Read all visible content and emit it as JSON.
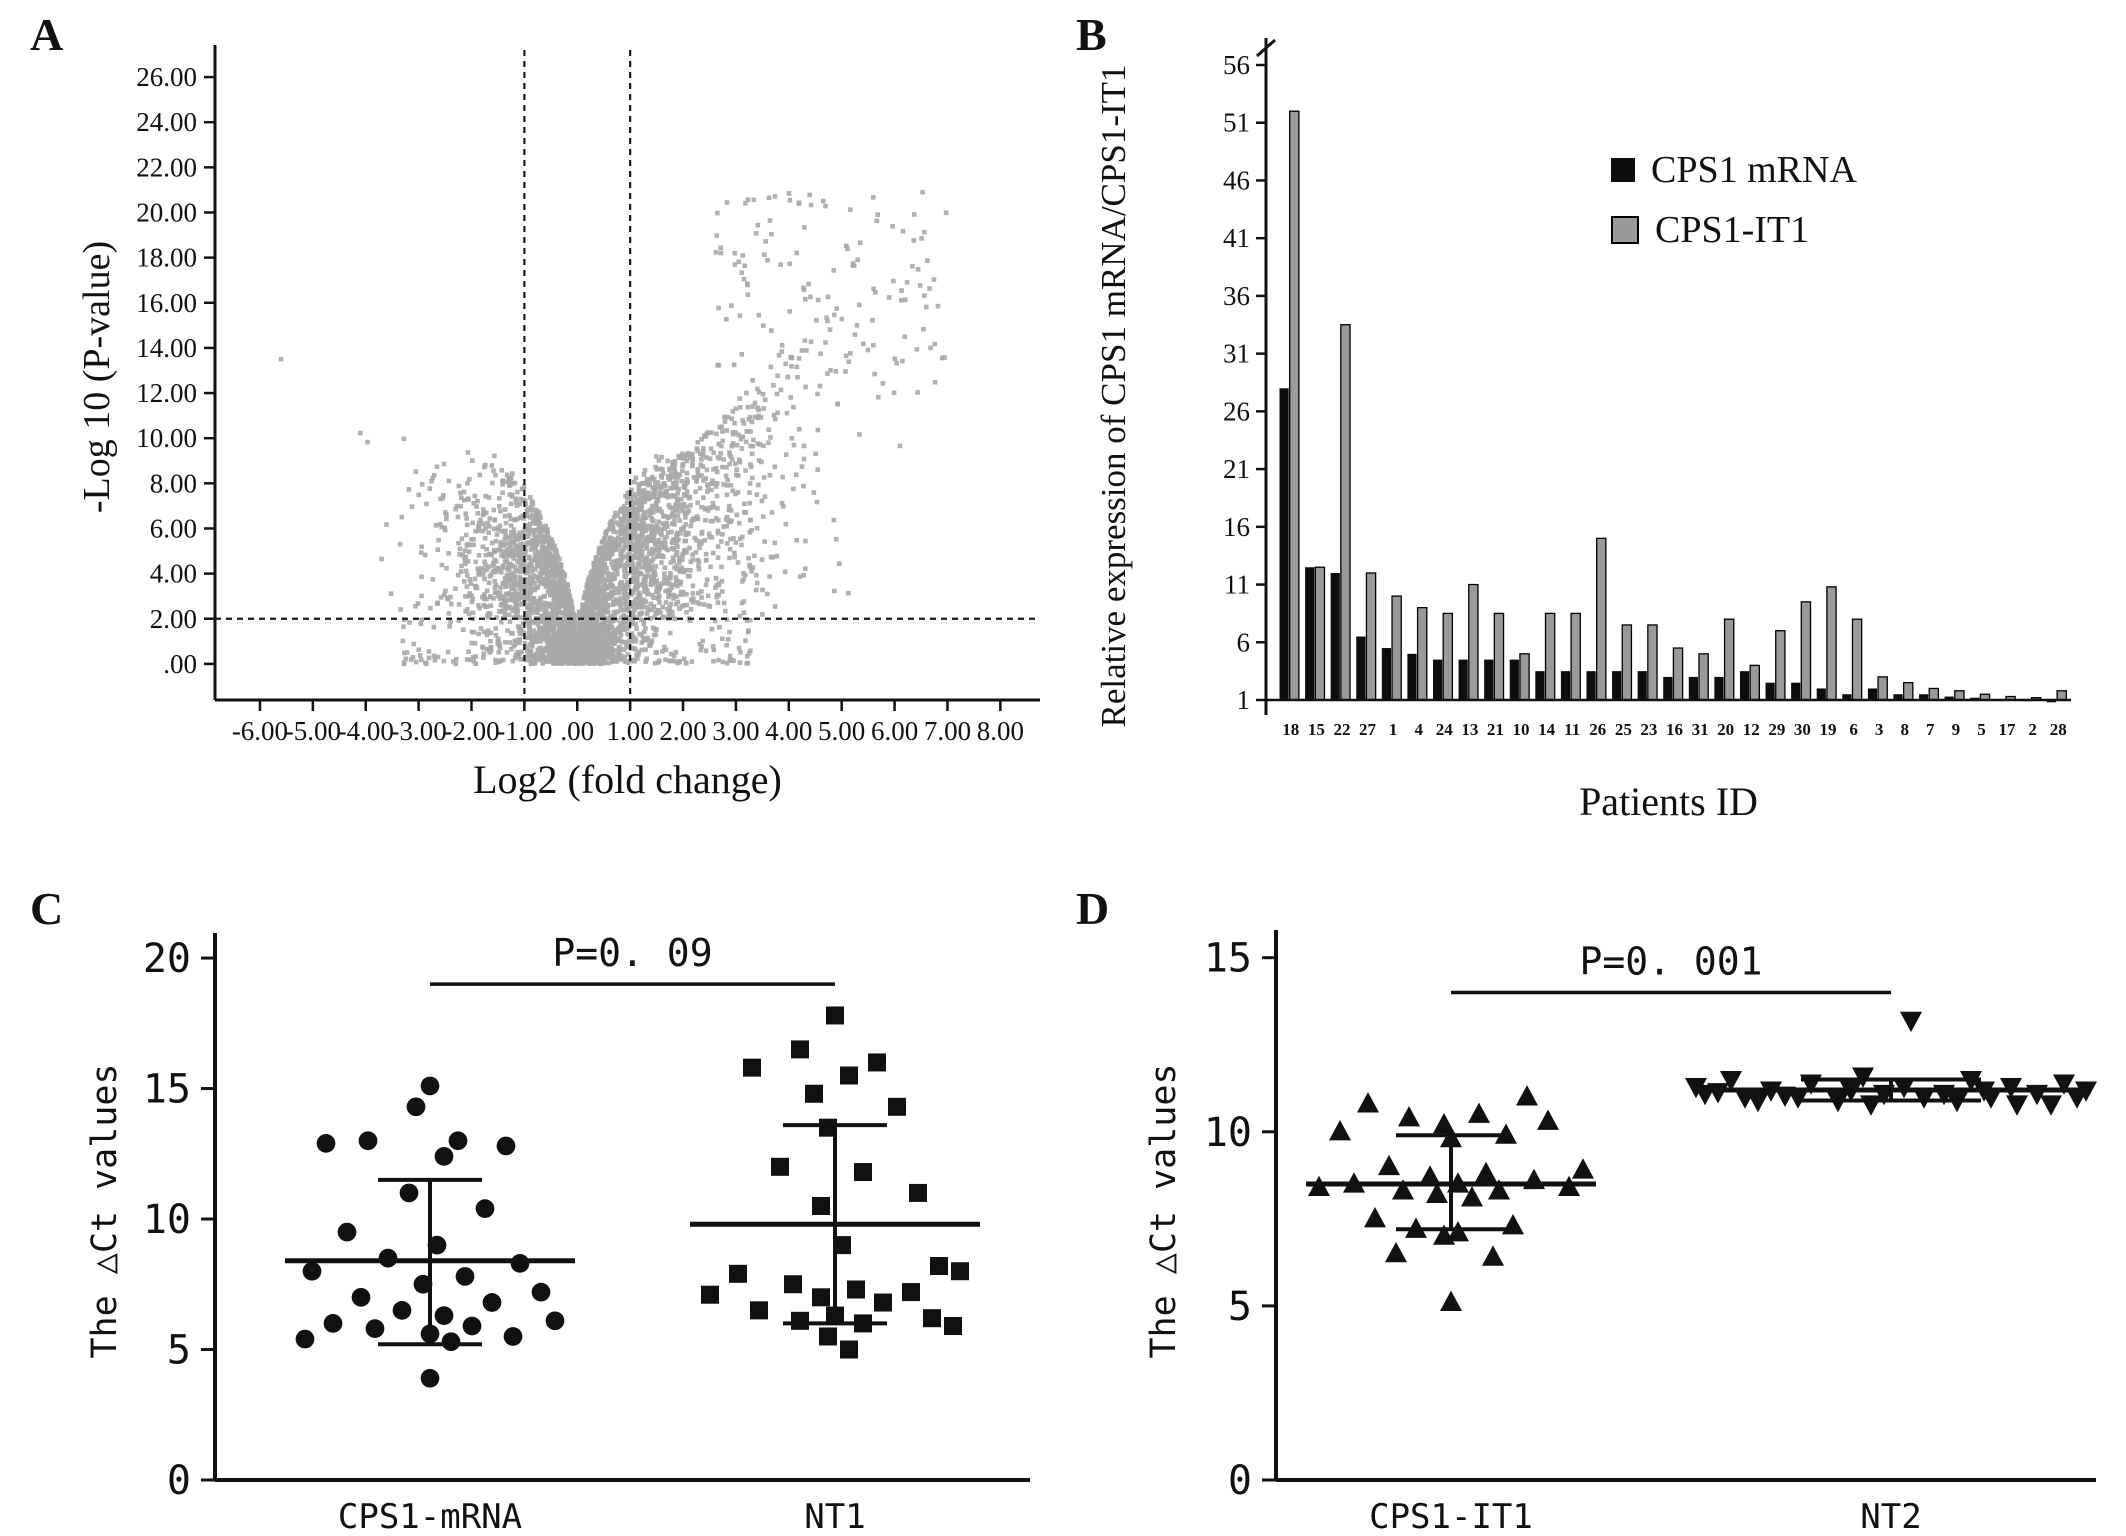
{
  "panels": {
    "a": {
      "letter": "A"
    },
    "b": {
      "letter": "B"
    },
    "c": {
      "letter": "C"
    },
    "d": {
      "letter": "D"
    }
  },
  "chart_data": [
    {
      "id": "volcano",
      "type": "scatter",
      "xlabel": "Log2 (fold change)",
      "ylabel": "-Log 10 (P-value)",
      "xlim": [
        -6.85,
        8.75
      ],
      "ylim": [
        -1.6,
        27.2
      ],
      "xticks": [
        -6,
        -5,
        -4,
        -3,
        -2,
        -1,
        0,
        1,
        2,
        3,
        4,
        5,
        6,
        7,
        8
      ],
      "xtick_labels": [
        "-6.00",
        "-5.00",
        "-4.00",
        "-3.00",
        "-2.00",
        "-1.00",
        ".00",
        "1.00",
        "2.00",
        "3.00",
        "4.00",
        "5.00",
        "6.00",
        "7.00",
        "8.00"
      ],
      "yticks": [
        0,
        2,
        4,
        6,
        8,
        10,
        12,
        14,
        16,
        18,
        20,
        22,
        24,
        26
      ],
      "ytick_labels": [
        ".00",
        "2.00",
        "4.00",
        "6.00",
        "8.00",
        "10.00",
        "12.00",
        "14.00",
        "16.00",
        "18.00",
        "20.00",
        "22.00",
        "24.00",
        "26.00"
      ],
      "threshold_lines": {
        "vertical_x": [
          -1,
          1
        ],
        "horizontal_y": 2
      },
      "marker": {
        "shape": "square",
        "color": "#a8a8a8",
        "size": 4.6
      },
      "point_cloud": {
        "seed": 20240615,
        "clusters": [
          {
            "kind": "core",
            "count": 2500,
            "x_sigma": 0.8,
            "x_clip": [
              -2.9,
              2.9
            ],
            "env_a": 0.2,
            "env_b": 7.6,
            "env_pow": 0.5,
            "y_max": 9.4
          },
          {
            "kind": "stem",
            "count": 650,
            "x_sigma": 0.25,
            "x_span": 0.9,
            "y_sigma": 0.8,
            "y_max": 2.3
          },
          {
            "kind": "wing",
            "count": 850,
            "side": 1,
            "x0": 0.95,
            "x_sigma": 1.55,
            "x_min": 0.95,
            "x_max": 7.6,
            "y_base": 2.0,
            "u_pow": 0.8,
            "c0": 3.0,
            "c1": 2.2,
            "y_max": 21.2
          },
          {
            "kind": "box",
            "count": 140,
            "x_range": [
              2.6,
              7.0
            ],
            "y_range": [
              12,
              21
            ]
          },
          {
            "kind": "wing",
            "count": 310,
            "side": -1,
            "x0": 0.95,
            "x_sigma": 1.05,
            "x_min": 0.95,
            "x_max": 5.1,
            "y_base": 2.0,
            "u_pow": 0.9,
            "c0": 1.2,
            "c1": 2.1,
            "y_max": 13.0
          },
          {
            "kind": "lowband",
            "count": 170,
            "x_range": [
              -3.3,
              3.3
            ],
            "y_max": 2.0
          },
          {
            "kind": "fixed",
            "x": -5.6,
            "y": 13.5
          }
        ]
      }
    },
    {
      "id": "expression-bars",
      "type": "bar",
      "xlabel": "Patients ID",
      "ylabel": "Relative expression of CPS1 mRNA/CPS1-IT1",
      "baseline": 1,
      "yticks": [
        1,
        6,
        11,
        16,
        21,
        26,
        31,
        36,
        41,
        46,
        51,
        56
      ],
      "categories": [
        "18",
        "15",
        "22",
        "27",
        "1",
        "4",
        "24",
        "13",
        "21",
        "10",
        "14",
        "11",
        "26",
        "25",
        "23",
        "16",
        "31",
        "20",
        "12",
        "29",
        "30",
        "19",
        "6",
        "3",
        "8",
        "7",
        "9",
        "5",
        "17",
        "2",
        "28"
      ],
      "series": [
        {
          "name": "CPS1 mRNA",
          "color": "#0d0d0d",
          "values": [
            28,
            12.5,
            12,
            6.5,
            5.5,
            5,
            4.5,
            4.5,
            4.5,
            4.5,
            3.5,
            3.5,
            3.5,
            3.5,
            3.5,
            3,
            3,
            3,
            3.5,
            2.5,
            2.5,
            2,
            1.5,
            2,
            1.5,
            1.5,
            1.3,
            1.2,
            1,
            0.9,
            0.8
          ]
        },
        {
          "name": "CPS1-IT1",
          "color": "#9a9a9a",
          "values": [
            52,
            12.5,
            33.5,
            12,
            10,
            9,
            8.5,
            11,
            8.5,
            5,
            8.5,
            8.5,
            15,
            7.5,
            7.5,
            5.5,
            5,
            8,
            4,
            7,
            9.5,
            10.8,
            8,
            3,
            2.5,
            2,
            1.8,
            1.5,
            1.3,
            1.2,
            1.8
          ]
        }
      ]
    },
    {
      "id": "dct-cps1mrna-vs-nt1",
      "type": "scatter",
      "ylabel": "The △Ct values",
      "ylim": [
        0,
        20.5
      ],
      "yticks": [
        0,
        5,
        10,
        15,
        20
      ],
      "p_label": "P=0. 09",
      "p_line_y": 19,
      "groups": [
        {
          "name": "CPS1-mRNA",
          "marker": "circle",
          "mean": 8.4,
          "sd_high": 11.5,
          "sd_low": 5.2,
          "points": [
            [
              0,
              15.1
            ],
            [
              -14,
              14.3
            ],
            [
              -62,
              13.0
            ],
            [
              28,
              13.0
            ],
            [
              -104,
              12.9
            ],
            [
              76,
              12.8
            ],
            [
              14,
              12.4
            ],
            [
              -21,
              11.0
            ],
            [
              55,
              10.4
            ],
            [
              -83,
              9.5
            ],
            [
              7,
              9.0
            ],
            [
              -42,
              8.5
            ],
            [
              90,
              8.3
            ],
            [
              -118,
              8.0
            ],
            [
              35,
              7.8
            ],
            [
              -7,
              7.5
            ],
            [
              111,
              7.2
            ],
            [
              -69,
              7.0
            ],
            [
              62,
              6.8
            ],
            [
              -28,
              6.5
            ],
            [
              14,
              6.3
            ],
            [
              125,
              6.1
            ],
            [
              -97,
              6.0
            ],
            [
              42,
              5.9
            ],
            [
              -55,
              5.8
            ],
            [
              0,
              5.6
            ],
            [
              83,
              5.5
            ],
            [
              -125,
              5.4
            ],
            [
              21,
              5.3
            ],
            [
              0,
              3.9
            ]
          ]
        },
        {
          "name": "NT1",
          "marker": "square",
          "mean": 9.8,
          "sd_high": 13.6,
          "sd_low": 6.0,
          "points": [
            [
              0,
              17.8
            ],
            [
              -35,
              16.5
            ],
            [
              42,
              16.0
            ],
            [
              -83,
              15.8
            ],
            [
              14,
              15.5
            ],
            [
              -21,
              14.8
            ],
            [
              62,
              14.3
            ],
            [
              -7,
              13.5
            ],
            [
              -55,
              12.0
            ],
            [
              28,
              11.8
            ],
            [
              83,
              11.0
            ],
            [
              -14,
              10.5
            ],
            [
              7,
              9.0
            ],
            [
              104,
              8.2
            ],
            [
              125,
              8.0
            ],
            [
              -97,
              7.9
            ],
            [
              -42,
              7.5
            ],
            [
              21,
              7.3
            ],
            [
              76,
              7.2
            ],
            [
              -125,
              7.1
            ],
            [
              -14,
              7.0
            ],
            [
              48,
              6.8
            ],
            [
              -76,
              6.5
            ],
            [
              0,
              6.3
            ],
            [
              97,
              6.2
            ],
            [
              -35,
              6.1
            ],
            [
              28,
              6.0
            ],
            [
              118,
              5.9
            ],
            [
              -7,
              5.5
            ],
            [
              14,
              5.0
            ]
          ]
        }
      ]
    },
    {
      "id": "dct-cps1it1-vs-nt2",
      "type": "scatter",
      "ylabel": "The △Ct values",
      "ylim": [
        0,
        15.45
      ],
      "yticks": [
        0,
        5,
        10,
        15
      ],
      "p_label": "P=0. 001",
      "p_line_y": 14,
      "groups": [
        {
          "name": "CPS1-IT1",
          "marker": "triangle-up",
          "mean": 8.5,
          "sd_high": 9.9,
          "sd_low": 7.2,
          "points": [
            [
              76,
              11.0
            ],
            [
              -83,
              10.8
            ],
            [
              28,
              10.5
            ],
            [
              -42,
              10.4
            ],
            [
              97,
              10.3
            ],
            [
              -7,
              10.2
            ],
            [
              -111,
              10.0
            ],
            [
              55,
              9.9
            ],
            [
              0,
              9.8
            ],
            [
              132,
              8.9
            ],
            [
              -62,
              9.0
            ],
            [
              35,
              8.8
            ],
            [
              -21,
              8.7
            ],
            [
              83,
              8.6
            ],
            [
              -97,
              8.5
            ],
            [
              7,
              8.5
            ],
            [
              -132,
              8.4
            ],
            [
              118,
              8.4
            ],
            [
              -48,
              8.3
            ],
            [
              48,
              8.3
            ],
            [
              -14,
              8.2
            ],
            [
              21,
              8.1
            ],
            [
              -76,
              7.5
            ],
            [
              62,
              7.3
            ],
            [
              -35,
              7.2
            ],
            [
              7,
              7.1
            ],
            [
              -7,
              7.0
            ],
            [
              -55,
              6.5
            ],
            [
              42,
              6.4
            ],
            [
              0,
              5.1
            ]
          ]
        },
        {
          "name": "NT2",
          "marker": "triangle-down",
          "mean": 11.2,
          "sd_high": 11.5,
          "sd_low": 10.9,
          "points": [
            [
              20,
              13.2
            ],
            [
              -28,
              11.6
            ],
            [
              -160,
              11.5
            ],
            [
              80,
              11.5
            ],
            [
              -80,
              11.4
            ],
            [
              173,
              11.4
            ],
            [
              -195,
              11.3
            ],
            [
              13,
              11.3
            ],
            [
              120,
              11.3
            ],
            [
              -120,
              11.2
            ],
            [
              -40,
              11.2
            ],
            [
              93,
              11.2
            ],
            [
              195,
              11.2
            ],
            [
              -186,
              11.1
            ],
            [
              -7,
              11.1
            ],
            [
              53,
              11.1
            ],
            [
              146,
              11.1
            ],
            [
              -146,
              11.0
            ],
            [
              -93,
              11.0
            ],
            [
              33,
              11.0
            ],
            [
              100,
              11.0
            ],
            [
              186,
              11.0
            ],
            [
              -133,
              10.9
            ],
            [
              -53,
              10.9
            ],
            [
              66,
              10.9
            ],
            [
              -20,
              10.8
            ],
            [
              126,
              10.8
            ],
            [
              160,
              10.8
            ],
            [
              -173,
              11.15
            ],
            [
              -106,
              11.05
            ]
          ]
        }
      ]
    }
  ]
}
